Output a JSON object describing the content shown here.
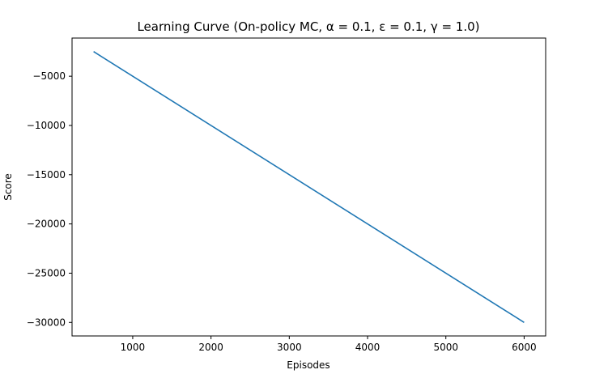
{
  "chart_data": {
    "type": "line",
    "title": "Learning Curve (On-policy MC,  α = 0.1,  ε = 0.1,  γ = 1.0)",
    "xlabel": "Episodes",
    "ylabel": "Score",
    "xlim": [
      225,
      6275
    ],
    "ylim": [
      -31375,
      -1125
    ],
    "xticks": [
      1000,
      2000,
      3000,
      4000,
      5000,
      6000
    ],
    "xtick_labels": [
      "1000",
      "2000",
      "3000",
      "4000",
      "5000",
      "6000"
    ],
    "yticks": [
      -5000,
      -10000,
      -15000,
      -20000,
      -25000,
      -30000
    ],
    "ytick_labels": [
      "−5000",
      "−10000",
      "−15000",
      "−20000",
      "−25000",
      "−30000"
    ],
    "grid": false,
    "legend": "none",
    "series": [
      {
        "color": "#1f77b4",
        "x": [
          500,
          6000
        ],
        "y": [
          -2500,
          -30000
        ]
      }
    ]
  }
}
